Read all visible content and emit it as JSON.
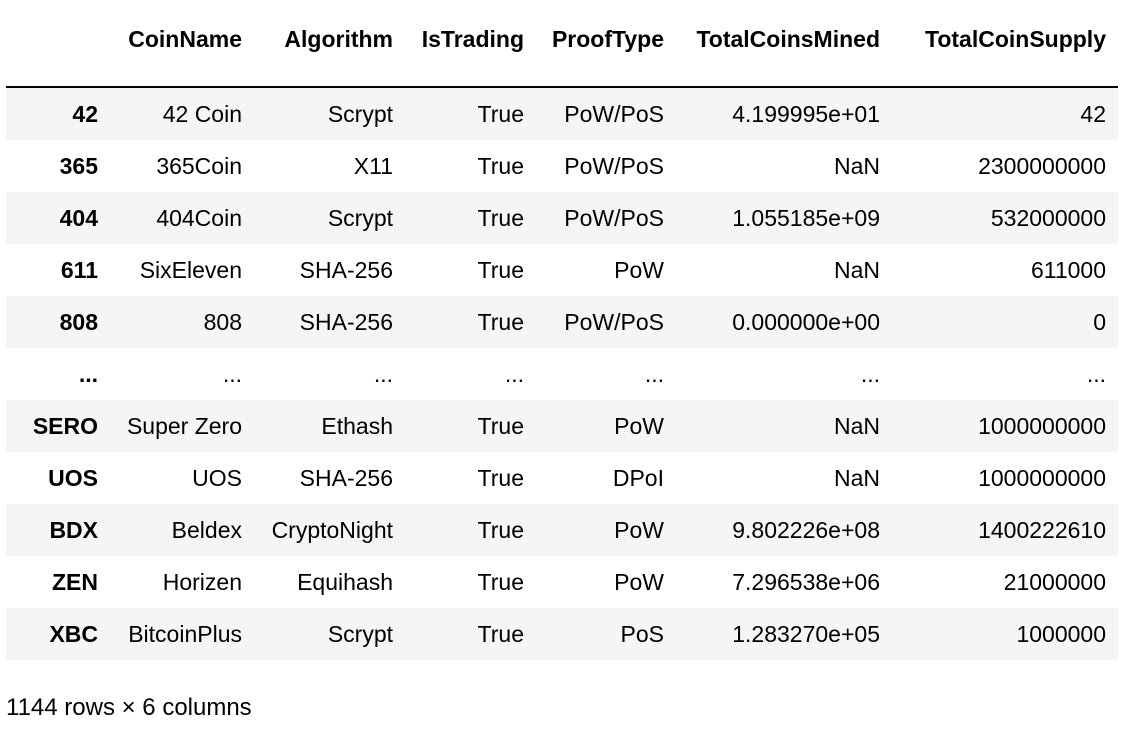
{
  "table": {
    "columns": [
      "",
      "CoinName",
      "Algorithm",
      "IsTrading",
      "ProofType",
      "TotalCoinsMined",
      "TotalCoinSupply"
    ],
    "rows": [
      [
        "42",
        "42 Coin",
        "Scrypt",
        "True",
        "PoW/PoS",
        "4.199995e+01",
        "42"
      ],
      [
        "365",
        "365Coin",
        "X11",
        "True",
        "PoW/PoS",
        "NaN",
        "2300000000"
      ],
      [
        "404",
        "404Coin",
        "Scrypt",
        "True",
        "PoW/PoS",
        "1.055185e+09",
        "532000000"
      ],
      [
        "611",
        "SixEleven",
        "SHA-256",
        "True",
        "PoW",
        "NaN",
        "611000"
      ],
      [
        "808",
        "808",
        "SHA-256",
        "True",
        "PoW/PoS",
        "0.000000e+00",
        "0"
      ],
      [
        "...",
        "...",
        "...",
        "...",
        "...",
        "...",
        "..."
      ],
      [
        "SERO",
        "Super Zero",
        "Ethash",
        "True",
        "PoW",
        "NaN",
        "1000000000"
      ],
      [
        "UOS",
        "UOS",
        "SHA-256",
        "True",
        "DPoI",
        "NaN",
        "1000000000"
      ],
      [
        "BDX",
        "Beldex",
        "CryptoNight",
        "True",
        "PoW",
        "9.802226e+08",
        "1400222610"
      ],
      [
        "ZEN",
        "Horizen",
        "Equihash",
        "True",
        "PoW",
        "7.296538e+06",
        "21000000"
      ],
      [
        "XBC",
        "BitcoinPlus",
        "Scrypt",
        "True",
        "PoS",
        "1.283270e+05",
        "1000000"
      ]
    ]
  },
  "summary": "1144 rows × 6 columns"
}
